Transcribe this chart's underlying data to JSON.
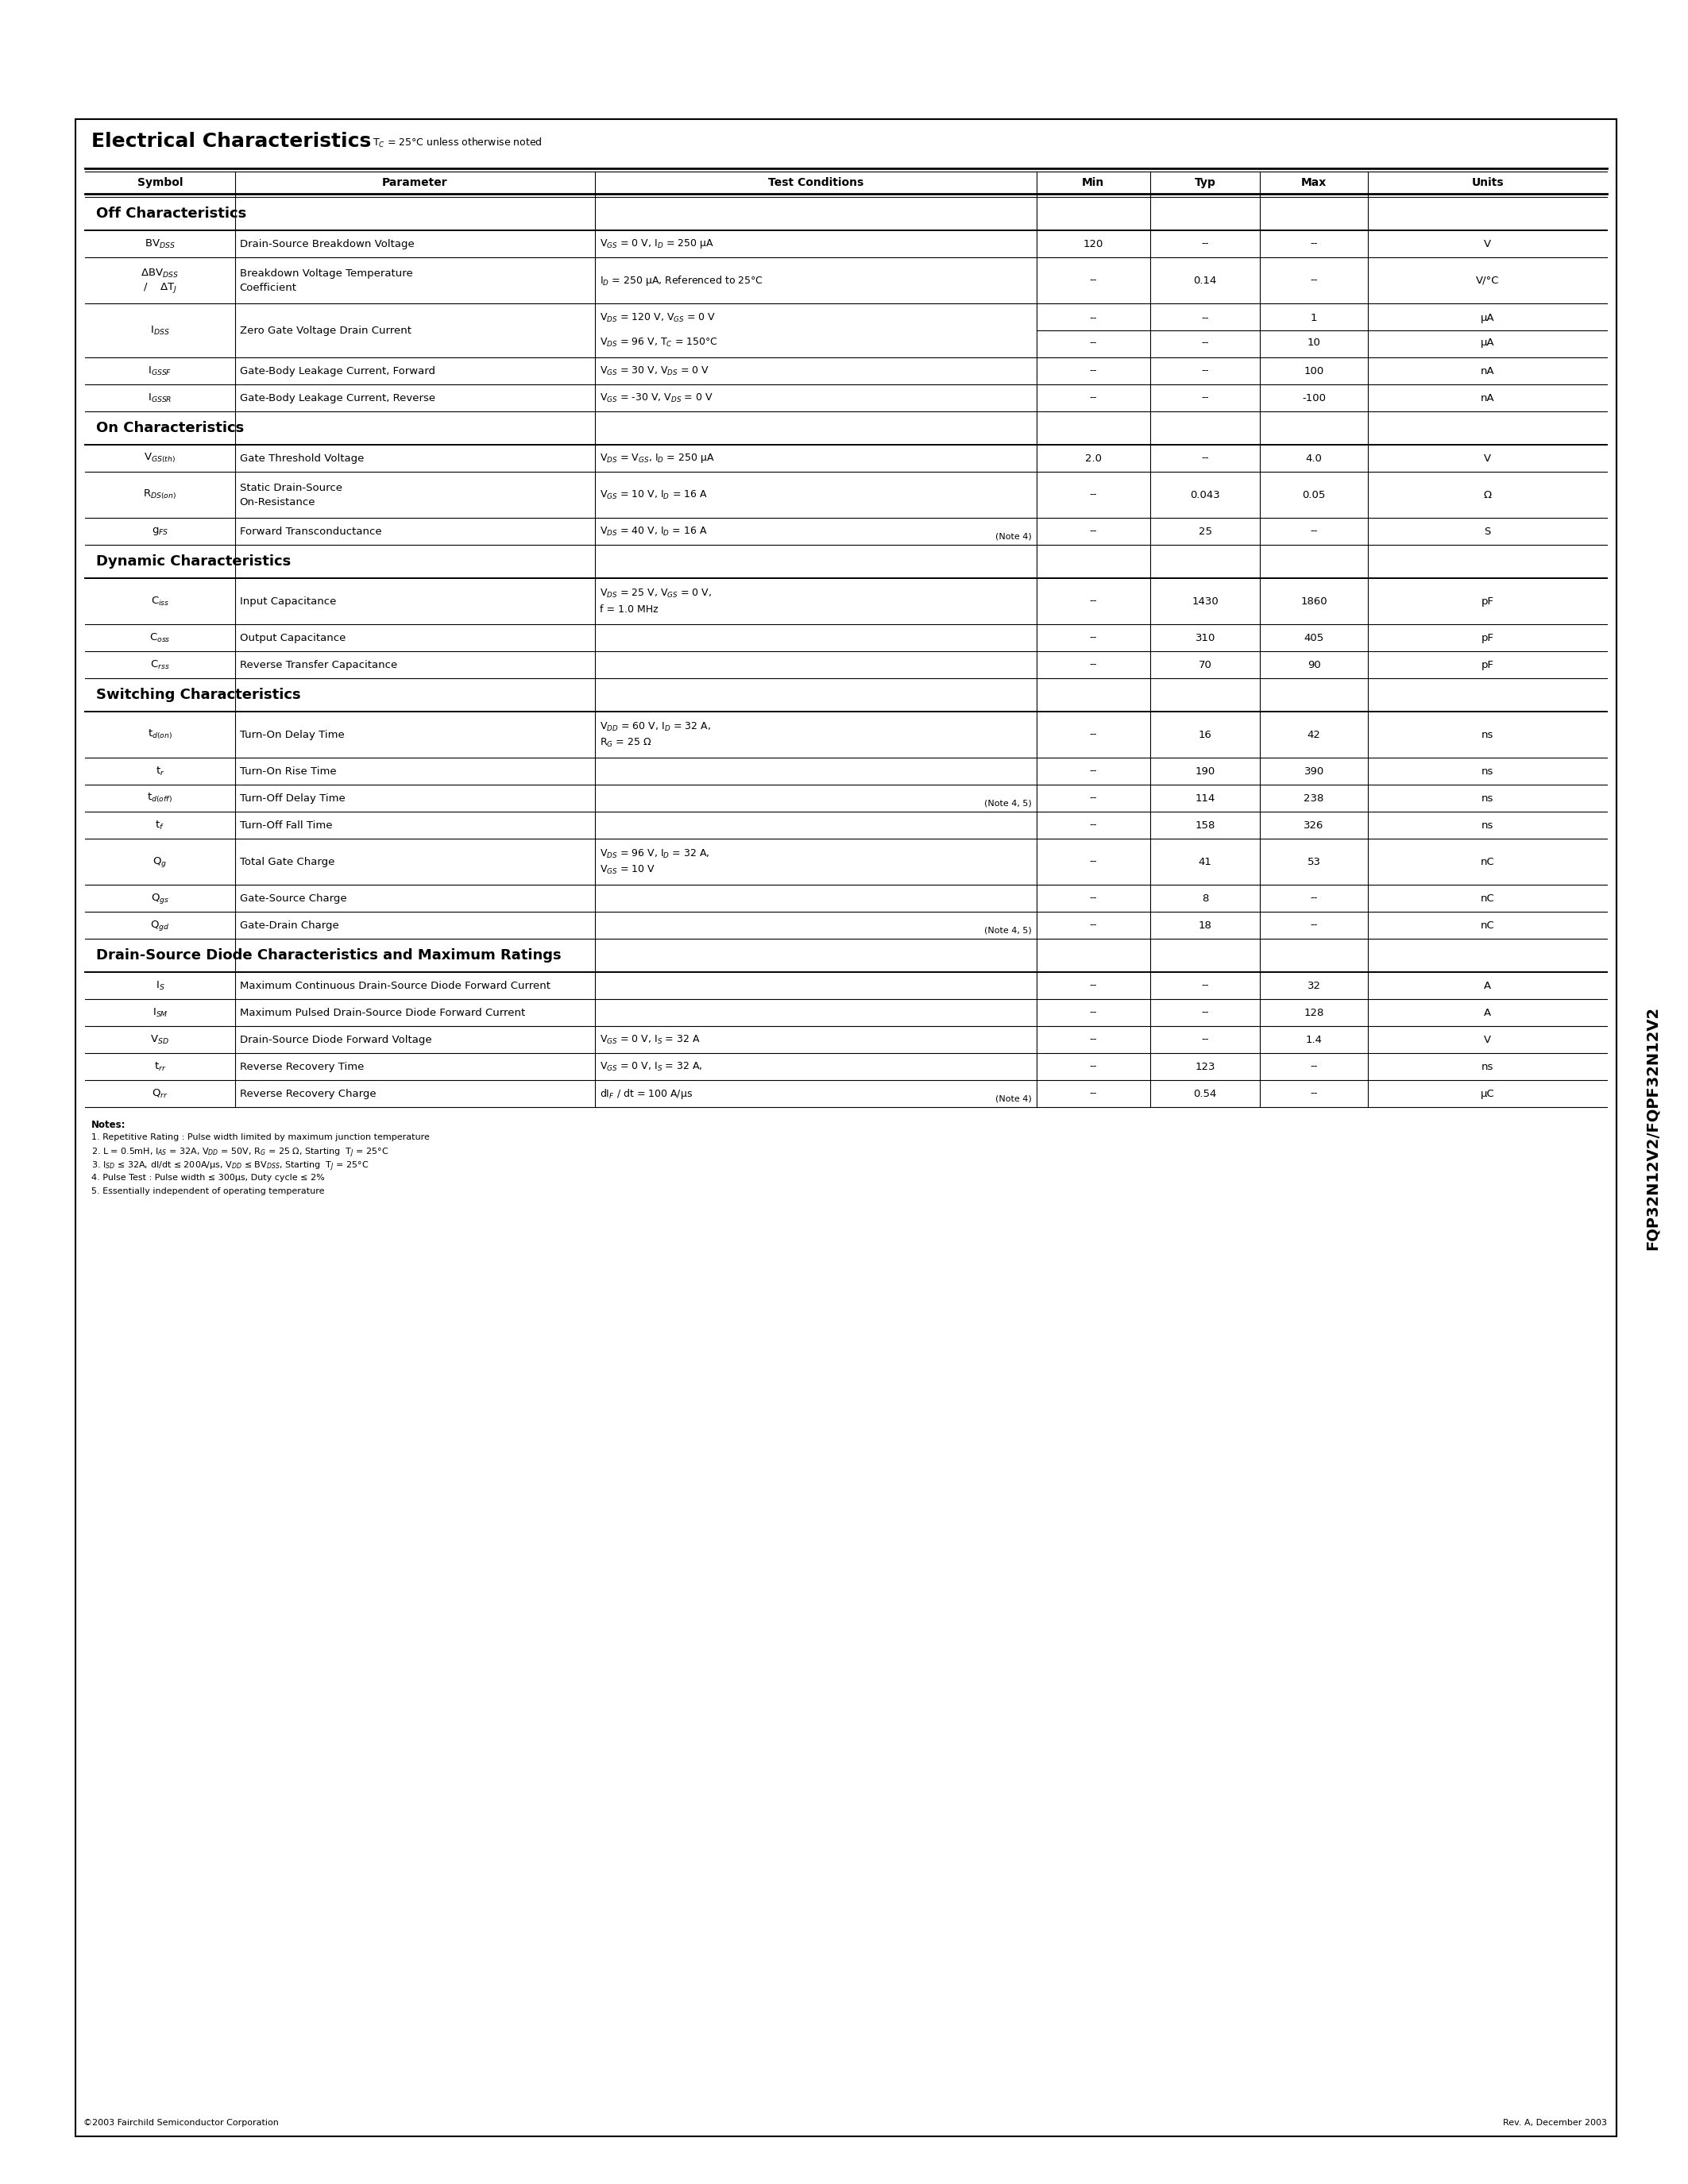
{
  "title": "Electrical Characteristics",
  "subtitle": "T_C = 25°C unless otherwise noted",
  "side_label": "FQP32N12V2/FQPF32N12V2",
  "col_headers": [
    "Symbol",
    "Parameter",
    "Test Conditions",
    "Min",
    "Typ",
    "Max",
    "Units"
  ],
  "sections": [
    {
      "heading": "Off Characteristics",
      "rows": [
        {
          "symbol": "BV$_{DSS}$",
          "parameter": "Drain-Source Breakdown Voltage",
          "cond1": "V$_{GS}$ = 0 V, I$_D$ = 250 μA",
          "cond2": "",
          "note": "",
          "min": "120",
          "typ": "--",
          "max": "--",
          "units": "V",
          "min2": "",
          "typ2": "",
          "max2": "",
          "units2": "",
          "tall": false,
          "two_value_rows": false
        },
        {
          "symbol": "ΔBV$_{DSS}$\n/    ΔT$_J$",
          "parameter": "Breakdown Voltage Temperature\nCoefficient",
          "cond1": "I$_D$ = 250 μA, Referenced to 25°C",
          "cond2": "",
          "note": "",
          "min": "--",
          "typ": "0.14",
          "max": "--",
          "units": "V/°C",
          "min2": "",
          "typ2": "",
          "max2": "",
          "units2": "",
          "tall": true,
          "two_value_rows": false
        },
        {
          "symbol": "I$_{DSS}$",
          "parameter": "Zero Gate Voltage Drain Current",
          "cond1": "V$_{DS}$ = 120 V, V$_{GS}$ = 0 V",
          "cond2": "V$_{DS}$ = 96 V, T$_C$ = 150°C",
          "note": "",
          "min": "--",
          "typ": "--",
          "max": "1",
          "units": "μA",
          "min2": "--",
          "typ2": "--",
          "max2": "10",
          "units2": "μA",
          "tall": true,
          "two_value_rows": true
        },
        {
          "symbol": "I$_{GSSF}$",
          "parameter": "Gate-Body Leakage Current, Forward",
          "cond1": "V$_{GS}$ = 30 V, V$_{DS}$ = 0 V",
          "cond2": "",
          "note": "",
          "min": "--",
          "typ": "--",
          "max": "100",
          "units": "nA",
          "min2": "",
          "typ2": "",
          "max2": "",
          "units2": "",
          "tall": false,
          "two_value_rows": false
        },
        {
          "symbol": "I$_{GSSR}$",
          "parameter": "Gate-Body Leakage Current, Reverse",
          "cond1": "V$_{GS}$ = -30 V, V$_{DS}$ = 0 V",
          "cond2": "",
          "note": "",
          "min": "--",
          "typ": "--",
          "max": "-100",
          "units": "nA",
          "min2": "",
          "typ2": "",
          "max2": "",
          "units2": "",
          "tall": false,
          "two_value_rows": false
        }
      ]
    },
    {
      "heading": "On Characteristics",
      "rows": [
        {
          "symbol": "V$_{GS(th)}$",
          "parameter": "Gate Threshold Voltage",
          "cond1": "V$_{DS}$ = V$_{GS}$, I$_D$ = 250 μA",
          "cond2": "",
          "note": "",
          "min": "2.0",
          "typ": "--",
          "max": "4.0",
          "units": "V",
          "min2": "",
          "typ2": "",
          "max2": "",
          "units2": "",
          "tall": false,
          "two_value_rows": false
        },
        {
          "symbol": "R$_{DS(on)}$",
          "parameter": "Static Drain-Source\nOn-Resistance",
          "cond1": "V$_{GS}$ = 10 V, I$_D$ = 16 A",
          "cond2": "",
          "note": "",
          "min": "--",
          "typ": "0.043",
          "max": "0.05",
          "units": "Ω",
          "min2": "",
          "typ2": "",
          "max2": "",
          "units2": "",
          "tall": true,
          "two_value_rows": false
        },
        {
          "symbol": "g$_{FS}$",
          "parameter": "Forward Transconductance",
          "cond1": "V$_{DS}$ = 40 V, I$_D$ = 16 A",
          "cond2": "",
          "note": "(Note 4)",
          "min": "--",
          "typ": "25",
          "max": "--",
          "units": "S",
          "min2": "",
          "typ2": "",
          "max2": "",
          "units2": "",
          "tall": false,
          "two_value_rows": false
        }
      ]
    },
    {
      "heading": "Dynamic Characteristics",
      "rows": [
        {
          "symbol": "C$_{iss}$",
          "parameter": "Input Capacitance",
          "cond1": "V$_{DS}$ = 25 V, V$_{GS}$ = 0 V,",
          "cond2": "f = 1.0 MHz",
          "note": "",
          "min": "--",
          "typ": "1430",
          "max": "1860",
          "units": "pF",
          "min2": "",
          "typ2": "",
          "max2": "",
          "units2": "",
          "tall": true,
          "two_value_rows": false
        },
        {
          "symbol": "C$_{oss}$",
          "parameter": "Output Capacitance",
          "cond1": "",
          "cond2": "",
          "note": "",
          "min": "--",
          "typ": "310",
          "max": "405",
          "units": "pF",
          "min2": "",
          "typ2": "",
          "max2": "",
          "units2": "",
          "tall": false,
          "two_value_rows": false
        },
        {
          "symbol": "C$_{rss}$",
          "parameter": "Reverse Transfer Capacitance",
          "cond1": "",
          "cond2": "",
          "note": "",
          "min": "--",
          "typ": "70",
          "max": "90",
          "units": "pF",
          "min2": "",
          "typ2": "",
          "max2": "",
          "units2": "",
          "tall": false,
          "two_value_rows": false
        }
      ]
    },
    {
      "heading": "Switching Characteristics",
      "rows": [
        {
          "symbol": "t$_{d(on)}$",
          "parameter": "Turn-On Delay Time",
          "cond1": "V$_{DD}$ = 60 V, I$_D$ = 32 A,",
          "cond2": "R$_G$ = 25 Ω",
          "note": "",
          "min": "--",
          "typ": "16",
          "max": "42",
          "units": "ns",
          "min2": "",
          "typ2": "",
          "max2": "",
          "units2": "",
          "tall": true,
          "two_value_rows": false
        },
        {
          "symbol": "t$_r$",
          "parameter": "Turn-On Rise Time",
          "cond1": "",
          "cond2": "",
          "note": "",
          "min": "--",
          "typ": "190",
          "max": "390",
          "units": "ns",
          "min2": "",
          "typ2": "",
          "max2": "",
          "units2": "",
          "tall": false,
          "two_value_rows": false
        },
        {
          "symbol": "t$_{d(off)}$",
          "parameter": "Turn-Off Delay Time",
          "cond1": "",
          "cond2": "",
          "note": "(Note 4, 5)",
          "min": "--",
          "typ": "114",
          "max": "238",
          "units": "ns",
          "min2": "",
          "typ2": "",
          "max2": "",
          "units2": "",
          "tall": false,
          "two_value_rows": false
        },
        {
          "symbol": "t$_f$",
          "parameter": "Turn-Off Fall Time",
          "cond1": "",
          "cond2": "",
          "note": "",
          "min": "--",
          "typ": "158",
          "max": "326",
          "units": "ns",
          "min2": "",
          "typ2": "",
          "max2": "",
          "units2": "",
          "tall": false,
          "two_value_rows": false
        },
        {
          "symbol": "Q$_g$",
          "parameter": "Total Gate Charge",
          "cond1": "V$_{DS}$ = 96 V, I$_D$ = 32 A,",
          "cond2": "V$_{GS}$ = 10 V",
          "note": "",
          "min": "--",
          "typ": "41",
          "max": "53",
          "units": "nC",
          "min2": "",
          "typ2": "",
          "max2": "",
          "units2": "",
          "tall": true,
          "two_value_rows": false
        },
        {
          "symbol": "Q$_{gs}$",
          "parameter": "Gate-Source Charge",
          "cond1": "",
          "cond2": "",
          "note": "",
          "min": "--",
          "typ": "8",
          "max": "--",
          "units": "nC",
          "min2": "",
          "typ2": "",
          "max2": "",
          "units2": "",
          "tall": false,
          "two_value_rows": false
        },
        {
          "symbol": "Q$_{gd}$",
          "parameter": "Gate-Drain Charge",
          "cond1": "",
          "cond2": "",
          "note": "(Note 4, 5)",
          "min": "--",
          "typ": "18",
          "max": "--",
          "units": "nC",
          "min2": "",
          "typ2": "",
          "max2": "",
          "units2": "",
          "tall": false,
          "two_value_rows": false
        }
      ]
    },
    {
      "heading": "Drain-Source Diode Characteristics and Maximum Ratings",
      "rows": [
        {
          "symbol": "I$_S$",
          "parameter": "Maximum Continuous Drain-Source Diode Forward Current",
          "cond1": "",
          "cond2": "",
          "note": "",
          "min": "--",
          "typ": "--",
          "max": "32",
          "units": "A",
          "min2": "",
          "typ2": "",
          "max2": "",
          "units2": "",
          "tall": false,
          "two_value_rows": false
        },
        {
          "symbol": "I$_{SM}$",
          "parameter": "Maximum Pulsed Drain-Source Diode Forward Current",
          "cond1": "",
          "cond2": "",
          "note": "",
          "min": "--",
          "typ": "--",
          "max": "128",
          "units": "A",
          "min2": "",
          "typ2": "",
          "max2": "",
          "units2": "",
          "tall": false,
          "two_value_rows": false
        },
        {
          "symbol": "V$_{SD}$",
          "parameter": "Drain-Source Diode Forward Voltage",
          "cond1": "V$_{GS}$ = 0 V, I$_S$ = 32 A",
          "cond2": "",
          "note": "",
          "min": "--",
          "typ": "--",
          "max": "1.4",
          "units": "V",
          "min2": "",
          "typ2": "",
          "max2": "",
          "units2": "",
          "tall": false,
          "two_value_rows": false
        },
        {
          "symbol": "t$_{rr}$",
          "parameter": "Reverse Recovery Time",
          "cond1": "V$_{GS}$ = 0 V, I$_S$ = 32 A,",
          "cond2": "",
          "note": "",
          "min": "--",
          "typ": "123",
          "max": "--",
          "units": "ns",
          "min2": "",
          "typ2": "",
          "max2": "",
          "units2": "",
          "tall": false,
          "two_value_rows": false
        },
        {
          "symbol": "Q$_{rr}$",
          "parameter": "Reverse Recovery Charge",
          "cond1": "dI$_F$ / dt = 100 A/μs",
          "cond2": "",
          "note": "(Note 4)",
          "min": "--",
          "typ": "0.54",
          "max": "--",
          "units": "μC",
          "min2": "",
          "typ2": "",
          "max2": "",
          "units2": "",
          "tall": false,
          "two_value_rows": false
        }
      ]
    }
  ],
  "notes": [
    "Notes:",
    "1. Repetitive Rating : Pulse width limited by maximum junction temperature",
    "2. L = 0.5mH, I$_{AS}$ = 32A, V$_{DD}$ = 50V, R$_G$ = 25 Ω, Starting  T$_J$ = 25°C",
    "3. I$_{SD}$ ≤ 32A, dI/dt ≤ 200A/μs, V$_{DD}$ ≤ BV$_{DSS}$, Starting  T$_J$ = 25°C",
    "4. Pulse Test : Pulse width ≤ 300μs, Duty cycle ≤ 2%",
    "5. Essentially independent of operating temperature"
  ],
  "footer_left": "©2003 Fairchild Semiconductor Corporation",
  "footer_right": "Rev. A, December 2003"
}
